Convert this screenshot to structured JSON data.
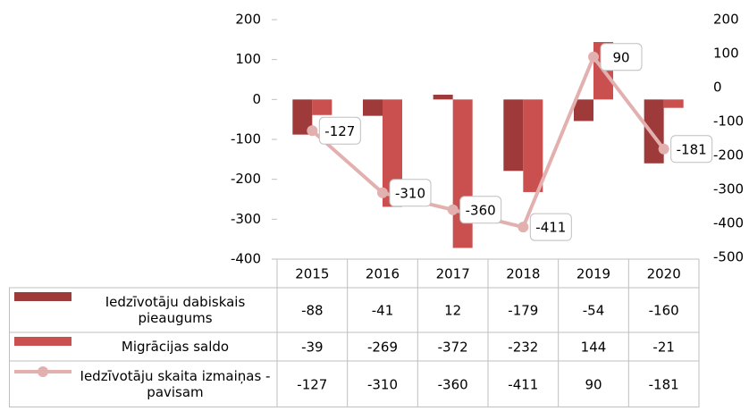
{
  "chart_data": {
    "type": "bar",
    "categories": [
      "2015",
      "2016",
      "2017",
      "2018",
      "2019",
      "2020"
    ],
    "series": [
      {
        "name": "Iedzīvotāju dabiskais pieaugums",
        "color": "#9e3b3a",
        "values": [
          -88,
          -41,
          12,
          -179,
          -54,
          -160
        ]
      },
      {
        "name": "Migrācijas saldo",
        "color": "#c9504f",
        "values": [
          -39,
          -269,
          -372,
          -232,
          144,
          -21
        ]
      },
      {
        "name": "Iedzīvotāju skaita izmaiņas - pavisam",
        "color": "#e3b0b0",
        "type": "line",
        "axis": "y2",
        "values": [
          -127,
          -310,
          -360,
          -411,
          90,
          -181
        ]
      }
    ],
    "ylim": [
      -400,
      200
    ],
    "yticks": [
      -400,
      -300,
      -200,
      -100,
      0,
      100,
      200
    ],
    "y2lim": [
      -500,
      200
    ],
    "y2ticks": [
      -500,
      -400,
      -300,
      -200,
      -100,
      0,
      100,
      200
    ]
  }
}
